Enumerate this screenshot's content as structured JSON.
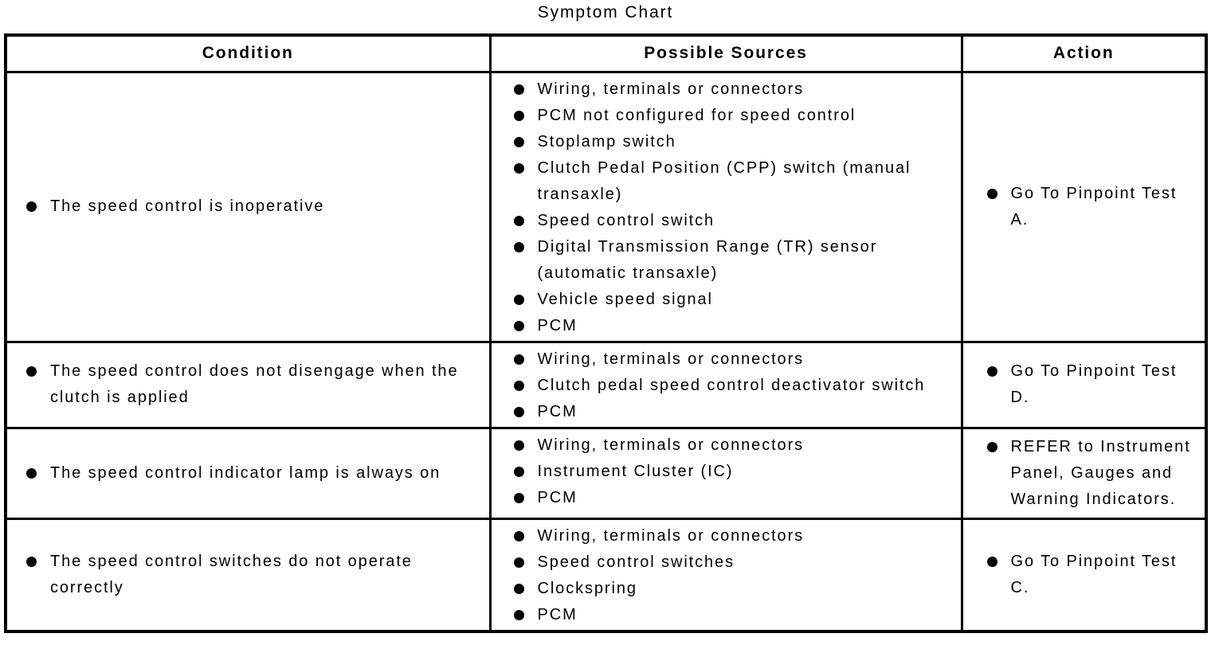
{
  "title": "Symptom Chart",
  "table": {
    "headers": [
      "Condition",
      "Possible Sources",
      "Action"
    ],
    "rows": [
      {
        "condition": [
          "The speed control is inoperative"
        ],
        "sources": [
          "Wiring, terminals or connectors",
          "PCM not configured for speed control",
          "Stoplamp switch",
          "Clutch Pedal Position (CPP) switch (manual transaxle)",
          "Speed control switch",
          "Digital Transmission Range (TR) sensor (automatic transaxle)",
          "Vehicle speed signal",
          "PCM"
        ],
        "action": [
          "Go To Pinpoint Test A."
        ]
      },
      {
        "condition": [
          "The speed control does not disengage when the clutch is applied"
        ],
        "sources": [
          "Wiring, terminals or connectors",
          "Clutch pedal speed control deactivator switch",
          "PCM"
        ],
        "action": [
          "Go To Pinpoint Test D."
        ]
      },
      {
        "condition": [
          "The speed control indicator lamp is always on"
        ],
        "sources": [
          "Wiring, terminals or connectors",
          "Instrument Cluster (IC)",
          "PCM"
        ],
        "action": [
          "REFER to Instrument Panel, Gauges and Warning Indicators."
        ]
      },
      {
        "condition": [
          "The speed control switches do not operate correctly"
        ],
        "sources": [
          "Wiring, terminals or connectors",
          "Speed control switches",
          "Clockspring",
          "PCM"
        ],
        "action": [
          "Go To Pinpoint Test C."
        ]
      }
    ]
  }
}
